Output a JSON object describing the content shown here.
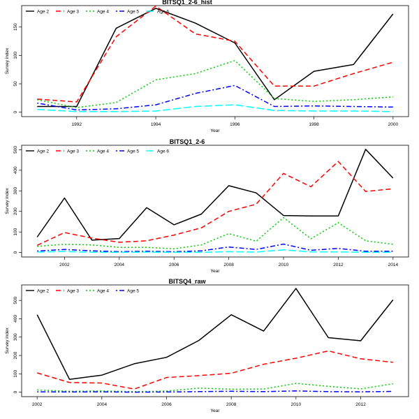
{
  "chart_data": [
    {
      "type": "line",
      "title": "BITSQ1_2-6_hist",
      "xlabel": "Year",
      "ylabel": "Survey index",
      "xlim": [
        1991,
        2000
      ],
      "ylim": [
        0,
        180
      ],
      "xticks": [
        1992,
        1994,
        1996,
        1998,
        2000
      ],
      "yticks": [
        0,
        50,
        100,
        150
      ],
      "x": [
        1991,
        1992,
        1993,
        1994,
        1995,
        1996,
        1997,
        1998,
        1999,
        2000
      ],
      "legend_position": "top-left",
      "grid": false,
      "series": [
        {
          "name": "Age 2",
          "color": "#000000",
          "dash": "solid",
          "values": [
            10,
            10,
            148,
            183,
            157,
            122,
            22,
            72,
            84,
            173
          ]
        },
        {
          "name": "Age 3",
          "color": "#ff0000",
          "dash": "dashed",
          "values": [
            23,
            18,
            133,
            187,
            138,
            125,
            46,
            46,
            68,
            88
          ]
        },
        {
          "name": "Age 4",
          "color": "#00cd00",
          "dash": "dotted",
          "values": [
            22,
            8,
            17,
            57,
            68,
            91,
            24,
            19,
            22,
            27
          ]
        },
        {
          "name": "Age 5",
          "color": "#0000ff",
          "dash": "dotdash",
          "values": [
            16,
            4,
            6,
            13,
            33,
            47,
            10,
            11,
            10,
            9
          ]
        },
        {
          "name": "Age 6",
          "color": "#00ffff",
          "dash": "longdash",
          "values": [
            5,
            1,
            1,
            2,
            10,
            13,
            3,
            2,
            2,
            1
          ]
        }
      ]
    },
    {
      "type": "line",
      "title": "BITSQ1_2-6",
      "xlabel": "Year",
      "ylabel": "Survey index",
      "xlim": [
        2001,
        2014
      ],
      "ylim": [
        0,
        500
      ],
      "xticks": [
        2002,
        2004,
        2006,
        2008,
        2010,
        2012,
        2014
      ],
      "yticks": [
        0,
        100,
        200,
        300,
        400,
        500
      ],
      "x": [
        2001,
        2002,
        2003,
        2004,
        2005,
        2006,
        2007,
        2008,
        2009,
        2010,
        2011,
        2012,
        2013,
        2014
      ],
      "legend_position": "top-left",
      "grid": false,
      "series": [
        {
          "name": "Age 2",
          "color": "#000000",
          "dash": "solid",
          "values": [
            75,
            265,
            60,
            68,
            218,
            135,
            187,
            325,
            290,
            180,
            178,
            178,
            502,
            362
          ]
        },
        {
          "name": "Age 3",
          "color": "#ff0000",
          "dash": "dashed",
          "values": [
            35,
            97,
            70,
            50,
            57,
            85,
            120,
            200,
            235,
            385,
            320,
            443,
            297,
            310
          ]
        },
        {
          "name": "Age 4",
          "color": "#00cd00",
          "dash": "dotted",
          "values": [
            30,
            40,
            37,
            25,
            25,
            18,
            37,
            92,
            55,
            170,
            67,
            145,
            57,
            40
          ]
        },
        {
          "name": "Age 5",
          "color": "#0000ff",
          "dash": "dotdash",
          "values": [
            7,
            15,
            8,
            4,
            6,
            4,
            8,
            27,
            15,
            41,
            11,
            20,
            6,
            6
          ]
        },
        {
          "name": "Age 6",
          "color": "#00ffff",
          "dash": "longdash",
          "values": [
            2,
            5,
            1,
            1,
            2,
            1,
            1,
            4,
            2,
            13,
            3,
            3,
            1,
            1
          ]
        }
      ]
    },
    {
      "type": "line",
      "title": "BITSQ4_raw",
      "xlabel": "Year",
      "ylabel": "Survey index",
      "xlim": [
        2002,
        2013
      ],
      "ylim": [
        0,
        560
      ],
      "xticks": [
        2002,
        2004,
        2006,
        2008,
        2010,
        2012
      ],
      "yticks": [
        0,
        100,
        200,
        300,
        400,
        500
      ],
      "x": [
        2002,
        2003,
        2004,
        2005,
        2006,
        2007,
        2008,
        2009,
        2010,
        2011,
        2012,
        2013
      ],
      "legend_position": "top-left",
      "grid": false,
      "series": [
        {
          "name": "Age 2",
          "color": "#000000",
          "dash": "solid",
          "values": [
            422,
            70,
            93,
            155,
            190,
            282,
            422,
            333,
            565,
            297,
            280,
            503
          ]
        },
        {
          "name": "Age 3",
          "color": "#ff0000",
          "dash": "dashed",
          "values": [
            105,
            53,
            50,
            17,
            80,
            90,
            103,
            152,
            185,
            225,
            182,
            163
          ]
        },
        {
          "name": "Age 4",
          "color": "#00cd00",
          "dash": "dotted",
          "values": [
            12,
            5,
            7,
            3,
            6,
            22,
            16,
            17,
            48,
            32,
            18,
            46
          ]
        },
        {
          "name": "Age 5",
          "color": "#0000ff",
          "dash": "dotdash",
          "values": [
            2,
            1,
            2,
            0,
            1,
            3,
            5,
            3,
            7,
            3,
            2,
            4
          ]
        }
      ]
    }
  ]
}
